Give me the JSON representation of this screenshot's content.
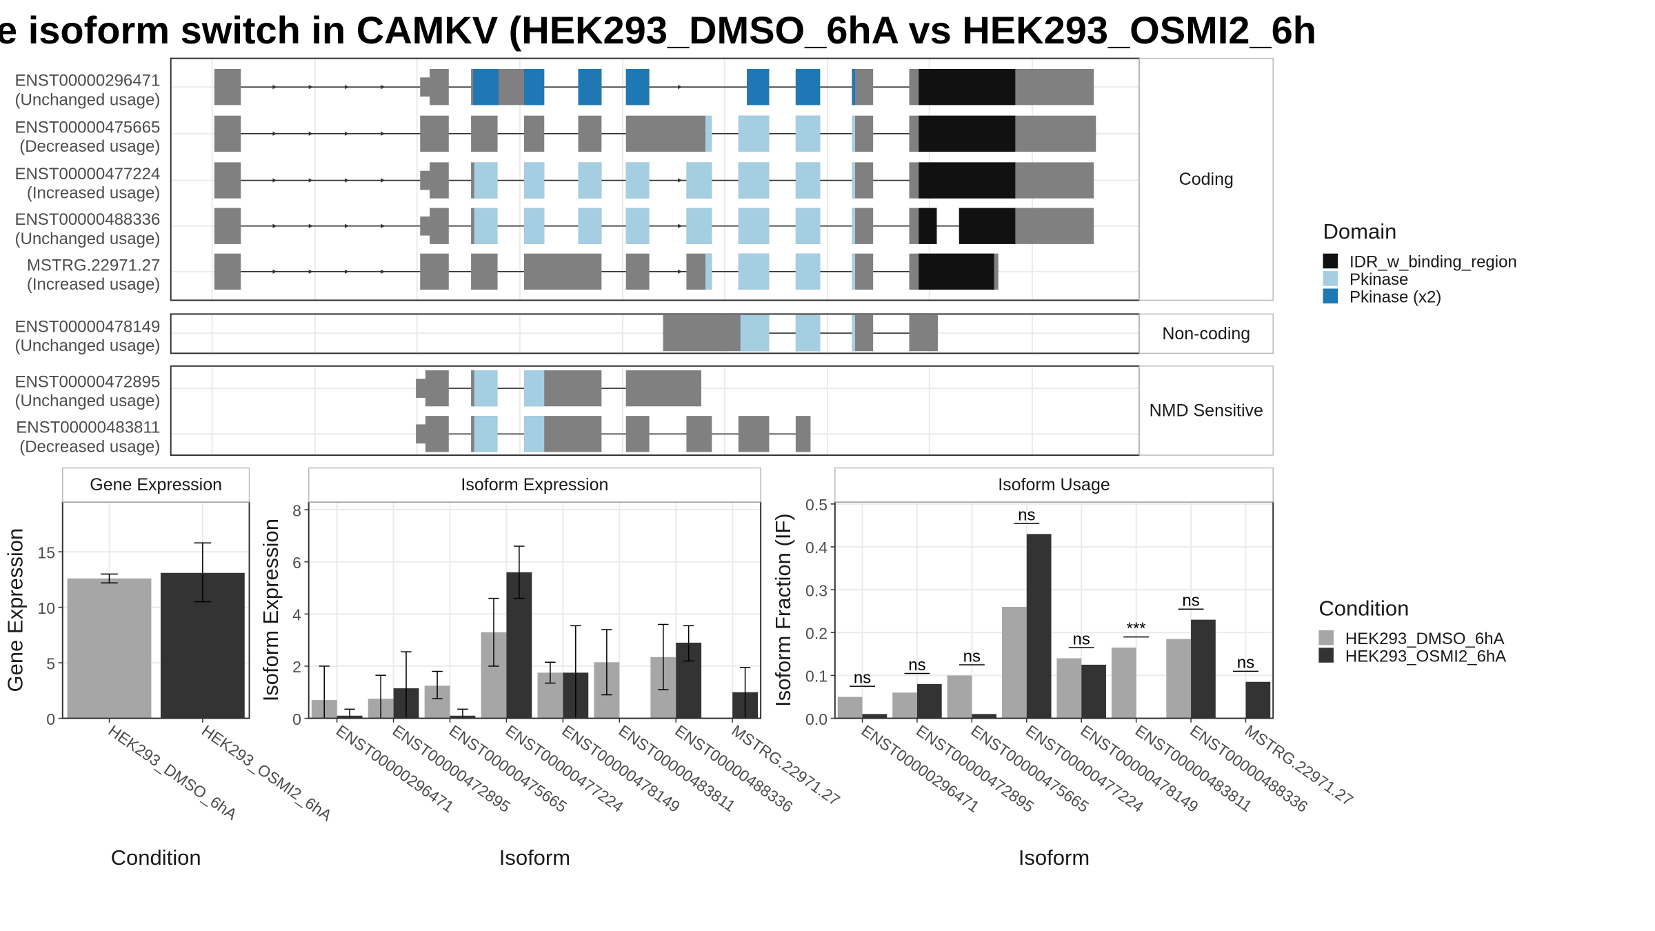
{
  "title": "e isoform switch in CAMKV (HEK293_DMSO_6hA vs HEK293_OSMI2_6h",
  "colors": {
    "exon": "#808080",
    "idr": "#111111",
    "pkinase": "#a6cee3",
    "pkinase_x2": "#1f78b4",
    "dmso": "#a6a6a6",
    "osmi": "#333333",
    "panel_border": "#333333",
    "strip": "#ffffff",
    "grid": "#ebebeb"
  },
  "legend_domain": {
    "title": "Domain",
    "items": [
      {
        "label": "IDR_w_binding_region",
        "color": "#111111"
      },
      {
        "label": "Pkinase",
        "color": "#a6cee3"
      },
      {
        "label": "Pkinase (x2)",
        "color": "#1f78b4"
      }
    ]
  },
  "legend_condition": {
    "title": "Condition",
    "items": [
      {
        "label": "HEK293_DMSO_6hA",
        "color": "#a6a6a6"
      },
      {
        "label": "HEK293_OSMI2_6hA",
        "color": "#333333"
      }
    ]
  },
  "chart_data": [
    {
      "type": "transcript_structure",
      "panels": [
        {
          "strip": "Coding",
          "transcripts": [
            {
              "id": "ENST00000296471",
              "usage": "(Unchanged usage)"
            },
            {
              "id": "ENST00000475665",
              "usage": "(Decreased usage)"
            },
            {
              "id": "ENST00000477224",
              "usage": "(Increased usage)"
            },
            {
              "id": "ENST00000488336",
              "usage": "(Unchanged usage)"
            },
            {
              "id": "MSTRG.22971.27",
              "usage": "(Increased usage)"
            }
          ]
        },
        {
          "strip": "Non-coding",
          "transcripts": [
            {
              "id": "ENST00000478149",
              "usage": "(Unchanged usage)"
            }
          ]
        },
        {
          "strip": "NMD Sensitive",
          "transcripts": [
            {
              "id": "ENST00000472895",
              "usage": "(Unchanged usage)"
            },
            {
              "id": "ENST00000483811",
              "usage": "(Decreased usage)"
            }
          ]
        }
      ]
    },
    {
      "type": "bar",
      "strip": "Gene Expression",
      "xlabel": "Condition",
      "ylabel": "Gene Expression",
      "ylim": [
        0,
        19.5
      ],
      "yticks": [
        0,
        5,
        10,
        15
      ],
      "categories": [
        "HEK293_DMSO_6hA",
        "HEK293_OSMI2_6hA"
      ],
      "values": [
        12.6,
        13.1
      ],
      "errors": [
        [
          12.2,
          13.0
        ],
        [
          10.5,
          15.8
        ]
      ]
    },
    {
      "type": "bar",
      "strip": "Isoform Expression",
      "xlabel": "Isoform",
      "ylabel": "Isoform Expression",
      "ylim": [
        0,
        8.3
      ],
      "yticks": [
        0,
        2,
        4,
        6,
        8
      ],
      "categories": [
        "ENST00000296471",
        "ENST00000472895",
        "ENST00000475665",
        "ENST00000477224",
        "ENST00000478149",
        "ENST00000483811",
        "ENST00000488336",
        "MSTRG.22971.27"
      ],
      "series": [
        {
          "name": "HEK293_DMSO_6hA",
          "values": [
            0.7,
            0.75,
            1.25,
            3.3,
            1.75,
            2.15,
            2.35,
            0.0
          ],
          "errors": [
            [
              0.0,
              2.0
            ],
            [
              0.0,
              1.65
            ],
            [
              0.75,
              1.8
            ],
            [
              2.0,
              4.6
            ],
            [
              1.35,
              2.15
            ],
            [
              0.9,
              3.4
            ],
            [
              1.1,
              3.6
            ],
            null
          ]
        },
        {
          "name": "HEK293_OSMI2_6hA",
          "values": [
            0.1,
            1.15,
            0.1,
            5.6,
            1.75,
            0.0,
            2.9,
            1.0
          ],
          "errors": [
            [
              0.0,
              0.35
            ],
            [
              0.0,
              2.55
            ],
            [
              0.0,
              0.35
            ],
            [
              4.6,
              6.6
            ],
            [
              0.0,
              3.55
            ],
            null,
            [
              2.2,
              3.55
            ],
            [
              0.0,
              1.95
            ]
          ]
        }
      ]
    },
    {
      "type": "bar",
      "strip": "Isoform Usage",
      "xlabel": "Isoform",
      "ylabel": "Isoform Fraction (IF)",
      "ylim": [
        0,
        0.505
      ],
      "yticks": [
        0.0,
        0.1,
        0.2,
        0.3,
        0.4,
        0.5
      ],
      "ytick_labels": [
        "0.0",
        "0.1",
        "0.2",
        "0.3",
        "0.4",
        "0.5"
      ],
      "categories": [
        "ENST00000296471",
        "ENST00000472895",
        "ENST00000475665",
        "ENST00000477224",
        "ENST00000478149",
        "ENST00000483811",
        "ENST00000488336",
        "MSTRG.22971.27"
      ],
      "series": [
        {
          "name": "HEK293_DMSO_6hA",
          "values": [
            0.05,
            0.06,
            0.1,
            0.26,
            0.14,
            0.165,
            0.185,
            0.0
          ]
        },
        {
          "name": "HEK293_OSMI2_6hA",
          "values": [
            0.01,
            0.08,
            0.01,
            0.43,
            0.125,
            0.0,
            0.23,
            0.085
          ]
        }
      ],
      "significance": [
        "ns",
        "ns",
        "ns",
        "ns",
        "ns",
        "***",
        "ns",
        "ns"
      ]
    }
  ]
}
